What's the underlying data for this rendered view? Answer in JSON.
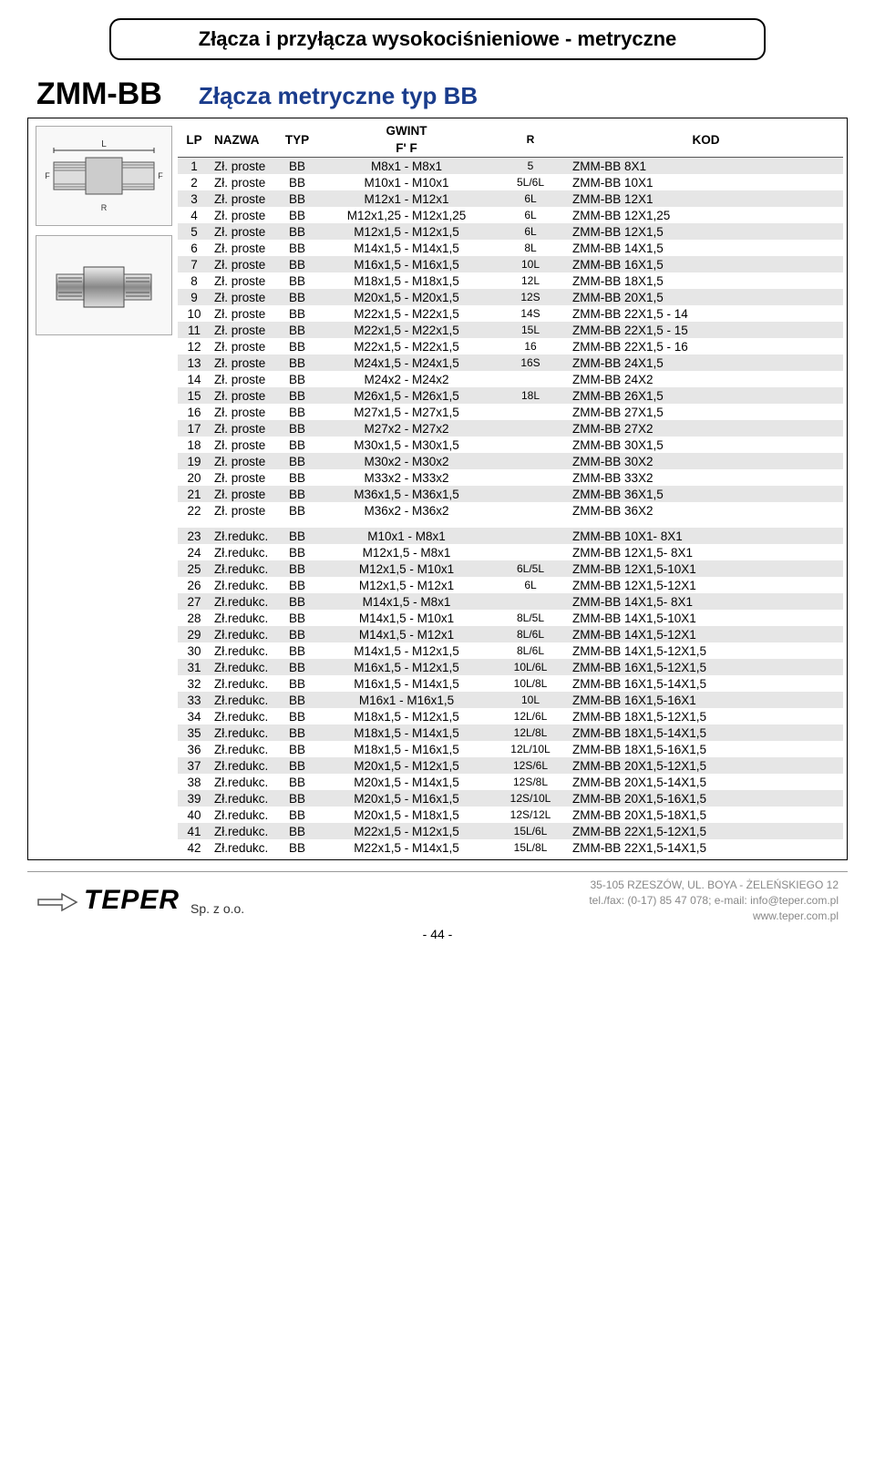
{
  "page_title": "Złącza i przyłącza wysokociśnieniowe - metryczne",
  "section": {
    "code": "ZMM-BB",
    "subtitle": "Złącza metryczne typ BB"
  },
  "headers": {
    "lp": "LP",
    "nazwa": "NAZWA",
    "typ": "TYP",
    "gwint_top": "GWINT",
    "gwint_sub": "F'   F",
    "r": "R",
    "kod": "KOD"
  },
  "rows1": [
    {
      "lp": "1",
      "nazwa": "Zł. proste",
      "typ": "BB",
      "gwint": "M8x1 - M8x1",
      "r": "5",
      "kod": "ZMM-BB 8X1"
    },
    {
      "lp": "2",
      "nazwa": "Zł. proste",
      "typ": "BB",
      "gwint": "M10x1 - M10x1",
      "r": "5L/6L",
      "kod": "ZMM-BB 10X1"
    },
    {
      "lp": "3",
      "nazwa": "Zł. proste",
      "typ": "BB",
      "gwint": "M12x1 - M12x1",
      "r": "6L",
      "kod": "ZMM-BB 12X1"
    },
    {
      "lp": "4",
      "nazwa": "Zł. proste",
      "typ": "BB",
      "gwint": "M12x1,25 - M12x1,25",
      "r": "6L",
      "kod": "ZMM-BB 12X1,25"
    },
    {
      "lp": "5",
      "nazwa": "Zł. proste",
      "typ": "BB",
      "gwint": "M12x1,5 - M12x1,5",
      "r": "6L",
      "kod": "ZMM-BB 12X1,5"
    },
    {
      "lp": "6",
      "nazwa": "Zł. proste",
      "typ": "BB",
      "gwint": "M14x1,5 - M14x1,5",
      "r": "8L",
      "kod": "ZMM-BB 14X1,5"
    },
    {
      "lp": "7",
      "nazwa": "Zł. proste",
      "typ": "BB",
      "gwint": "M16x1,5 - M16x1,5",
      "r": "10L",
      "kod": "ZMM-BB 16X1,5"
    },
    {
      "lp": "8",
      "nazwa": "Zł. proste",
      "typ": "BB",
      "gwint": "M18x1,5 - M18x1,5",
      "r": "12L",
      "kod": "ZMM-BB 18X1,5"
    },
    {
      "lp": "9",
      "nazwa": "Zł. proste",
      "typ": "BB",
      "gwint": "M20x1,5 - M20x1,5",
      "r": "12S",
      "kod": "ZMM-BB 20X1,5"
    },
    {
      "lp": "10",
      "nazwa": "Zł. proste",
      "typ": "BB",
      "gwint": "M22x1,5 - M22x1,5",
      "r": "14S",
      "kod": "ZMM-BB 22X1,5  - 14"
    },
    {
      "lp": "11",
      "nazwa": "Zł. proste",
      "typ": "BB",
      "gwint": "M22x1,5 - M22x1,5",
      "r": "15L",
      "kod": "ZMM-BB 22X1,5  - 15"
    },
    {
      "lp": "12",
      "nazwa": "Zł. proste",
      "typ": "BB",
      "gwint": "M22x1,5 - M22x1,5",
      "r": "16",
      "kod": "ZMM-BB 22X1,5  - 16"
    },
    {
      "lp": "13",
      "nazwa": "Zł. proste",
      "typ": "BB",
      "gwint": "M24x1,5 - M24x1,5",
      "r": "16S",
      "kod": "ZMM-BB 24X1,5"
    },
    {
      "lp": "14",
      "nazwa": "Zł. proste",
      "typ": "BB",
      "gwint": "M24x2 - M24x2",
      "r": "",
      "kod": "ZMM-BB 24X2"
    },
    {
      "lp": "15",
      "nazwa": "Zł. proste",
      "typ": "BB",
      "gwint": "M26x1,5 - M26x1,5",
      "r": "18L",
      "kod": "ZMM-BB 26X1,5"
    },
    {
      "lp": "16",
      "nazwa": "Zł. proste",
      "typ": "BB",
      "gwint": "M27x1,5 - M27x1,5",
      "r": "",
      "kod": "ZMM-BB 27X1,5"
    },
    {
      "lp": "17",
      "nazwa": "Zł. proste",
      "typ": "BB",
      "gwint": "M27x2 - M27x2",
      "r": "",
      "kod": "ZMM-BB 27X2"
    },
    {
      "lp": "18",
      "nazwa": "Zł. proste",
      "typ": "BB",
      "gwint": "M30x1,5 - M30x1,5",
      "r": "",
      "kod": "ZMM-BB 30X1,5"
    },
    {
      "lp": "19",
      "nazwa": "Zł. proste",
      "typ": "BB",
      "gwint": "M30x2 - M30x2",
      "r": "",
      "kod": "ZMM-BB 30X2"
    },
    {
      "lp": "20",
      "nazwa": "Zł. proste",
      "typ": "BB",
      "gwint": "M33x2 - M33x2",
      "r": "",
      "kod": "ZMM-BB 33X2"
    },
    {
      "lp": "21",
      "nazwa": "Zł. proste",
      "typ": "BB",
      "gwint": "M36x1,5 - M36x1,5",
      "r": "",
      "kod": "ZMM-BB 36X1,5"
    },
    {
      "lp": "22",
      "nazwa": "Zł. proste",
      "typ": "BB",
      "gwint": "M36x2 - M36x2",
      "r": "",
      "kod": "ZMM-BB 36X2"
    }
  ],
  "rows2": [
    {
      "lp": "23",
      "nazwa": "Zł.redukc.",
      "typ": "BB",
      "gwint": "M10x1 - M8x1",
      "r": "",
      "kod": "ZMM-BB 10X1- 8X1"
    },
    {
      "lp": "24",
      "nazwa": "Zł.redukc.",
      "typ": "BB",
      "gwint": "M12x1,5 - M8x1",
      "r": "",
      "kod": "ZMM-BB 12X1,5- 8X1"
    },
    {
      "lp": "25",
      "nazwa": "Zł.redukc.",
      "typ": "BB",
      "gwint": "M12x1,5 - M10x1",
      "r": "6L/5L",
      "kod": "ZMM-BB 12X1,5-10X1"
    },
    {
      "lp": "26",
      "nazwa": "Zł.redukc.",
      "typ": "BB",
      "gwint": "M12x1,5 - M12x1",
      "r": "6L",
      "kod": "ZMM-BB 12X1,5-12X1"
    },
    {
      "lp": "27",
      "nazwa": "Zł.redukc.",
      "typ": "BB",
      "gwint": "M14x1,5 - M8x1",
      "r": "",
      "kod": "ZMM-BB 14X1,5- 8X1"
    },
    {
      "lp": "28",
      "nazwa": "Zł.redukc.",
      "typ": "BB",
      "gwint": "M14x1,5 - M10x1",
      "r": "8L/5L",
      "kod": "ZMM-BB 14X1,5-10X1"
    },
    {
      "lp": "29",
      "nazwa": "Zł.redukc.",
      "typ": "BB",
      "gwint": "M14x1,5 - M12x1",
      "r": "8L/6L",
      "kod": "ZMM-BB 14X1,5-12X1"
    },
    {
      "lp": "30",
      "nazwa": "Zł.redukc.",
      "typ": "BB",
      "gwint": "M14x1,5 - M12x1,5",
      "r": "8L/6L",
      "kod": "ZMM-BB 14X1,5-12X1,5"
    },
    {
      "lp": "31",
      "nazwa": "Zł.redukc.",
      "typ": "BB",
      "gwint": "M16x1,5 - M12x1,5",
      "r": "10L/6L",
      "kod": "ZMM-BB 16X1,5-12X1,5"
    },
    {
      "lp": "32",
      "nazwa": "Zł.redukc.",
      "typ": "BB",
      "gwint": "M16x1,5 - M14x1,5",
      "r": "10L/8L",
      "kod": "ZMM-BB 16X1,5-14X1,5"
    },
    {
      "lp": "33",
      "nazwa": "Zł.redukc.",
      "typ": "BB",
      "gwint": "M16x1 - M16x1,5",
      "r": "10L",
      "kod": "ZMM-BB 16X1,5-16X1"
    },
    {
      "lp": "34",
      "nazwa": "Zł.redukc.",
      "typ": "BB",
      "gwint": "M18x1,5 - M12x1,5",
      "r": "12L/6L",
      "kod": "ZMM-BB 18X1,5-12X1,5"
    },
    {
      "lp": "35",
      "nazwa": "Zł.redukc.",
      "typ": "BB",
      "gwint": "M18x1,5 - M14x1,5",
      "r": "12L/8L",
      "kod": "ZMM-BB 18X1,5-14X1,5"
    },
    {
      "lp": "36",
      "nazwa": "Zł.redukc.",
      "typ": "BB",
      "gwint": "M18x1,5 - M16x1,5",
      "r": "12L/10L",
      "kod": "ZMM-BB 18X1,5-16X1,5"
    },
    {
      "lp": "37",
      "nazwa": "Zł.redukc.",
      "typ": "BB",
      "gwint": "M20x1,5 - M12x1,5",
      "r": "12S/6L",
      "kod": "ZMM-BB 20X1,5-12X1,5"
    },
    {
      "lp": "38",
      "nazwa": "Zł.redukc.",
      "typ": "BB",
      "gwint": "M20x1,5 - M14x1,5",
      "r": "12S/8L",
      "kod": "ZMM-BB 20X1,5-14X1,5"
    },
    {
      "lp": "39",
      "nazwa": "Zł.redukc.",
      "typ": "BB",
      "gwint": "M20x1,5 - M16x1,5",
      "r": "12S/10L",
      "kod": "ZMM-BB 20X1,5-16X1,5"
    },
    {
      "lp": "40",
      "nazwa": "Zł.redukc.",
      "typ": "BB",
      "gwint": "M20x1,5 - M18x1,5",
      "r": "12S/12L",
      "kod": "ZMM-BB 20X1,5-18X1,5"
    },
    {
      "lp": "41",
      "nazwa": "Zł.redukc.",
      "typ": "BB",
      "gwint": "M22x1,5 - M12x1,5",
      "r": "15L/6L",
      "kod": "ZMM-BB 22X1,5-12X1,5"
    },
    {
      "lp": "42",
      "nazwa": "Zł.redukc.",
      "typ": "BB",
      "gwint": "M22x1,5 - M14x1,5",
      "r": "15L/8L",
      "kod": "ZMM-BB 22X1,5-14X1,5"
    }
  ],
  "style": {
    "alt_bg": "#e6e6e6",
    "subtitle_color": "#1a3c8c",
    "font_size": 13.5
  },
  "footer": {
    "logo": "TEPER",
    "spzoo": "Sp. z o.o.",
    "addr_line1": "35-105 RZESZÓW, UL. BOYA - ŻELEŃSKIEGO 12",
    "addr_line2": "tel./fax: (0-17) 85 47 078; e-mail: info@teper.com.pl",
    "addr_line3": "www.teper.com.pl",
    "page": "- 44 -"
  }
}
